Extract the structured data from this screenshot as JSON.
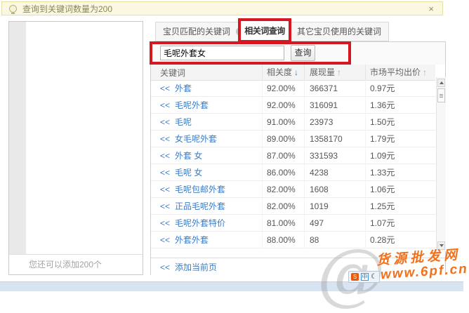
{
  "notification": {
    "text": "查询到关键词数量为200",
    "close_glyph": "×"
  },
  "left_panel": {
    "footer_text": "您还可以添加200个"
  },
  "tabs": {
    "matched": {
      "label": "宝贝匹配的关键词",
      "help_glyph": "?"
    },
    "related": {
      "label": "相关词查询"
    },
    "others": {
      "label": "其它宝贝使用的关键词"
    }
  },
  "search": {
    "input_value": "毛呢外套女",
    "button_label": "查询"
  },
  "table": {
    "headers": {
      "keyword": "关键词",
      "relevance": "相关度",
      "impressions": "展现量",
      "avg_bid": "市场平均出价"
    },
    "sort_glyphs": {
      "desc": "↓",
      "asc": "↑"
    },
    "link_prefix": "<<",
    "rows": [
      {
        "kw": "外套",
        "rel": "92.00%",
        "imp": "366371",
        "bid": "0.97元"
      },
      {
        "kw": "毛呢外套",
        "rel": "92.00%",
        "imp": "316091",
        "bid": "1.36元"
      },
      {
        "kw": "毛呢",
        "rel": "91.00%",
        "imp": "23973",
        "bid": "1.50元"
      },
      {
        "kw": "女毛呢外套",
        "rel": "89.00%",
        "imp": "1358170",
        "bid": "1.79元"
      },
      {
        "kw": "外套 女",
        "rel": "87.00%",
        "imp": "331593",
        "bid": "1.09元"
      },
      {
        "kw": "毛呢 女",
        "rel": "86.00%",
        "imp": "4238",
        "bid": "1.33元"
      },
      {
        "kw": "毛呢包邮外套",
        "rel": "82.00%",
        "imp": "1608",
        "bid": "1.06元"
      },
      {
        "kw": "正品毛呢外套",
        "rel": "82.00%",
        "imp": "1019",
        "bid": "1.25元"
      },
      {
        "kw": "毛呢外套特价",
        "rel": "81.00%",
        "imp": "497",
        "bid": "1.07元"
      },
      {
        "kw": "外套外套",
        "rel": "88.00%",
        "imp": "88",
        "bid": "0.28元"
      }
    ],
    "footer_link": "添加当前页"
  },
  "watermark": {
    "site_name": "货源批发网",
    "site_url": "www.6pf.cn",
    "at_glyph": "@"
  },
  "ime_bar": {
    "sogou_glyph": "S",
    "lang_glyph": "中",
    "moon_glyph": "☾"
  },
  "colors": {
    "highlight_red": "#d7171f",
    "link_blue": "#3b7cc4",
    "watermark_orange": "#f2711c",
    "notice_bg": "#fbf8e1",
    "bottom_strip": "#d8e4f1"
  }
}
